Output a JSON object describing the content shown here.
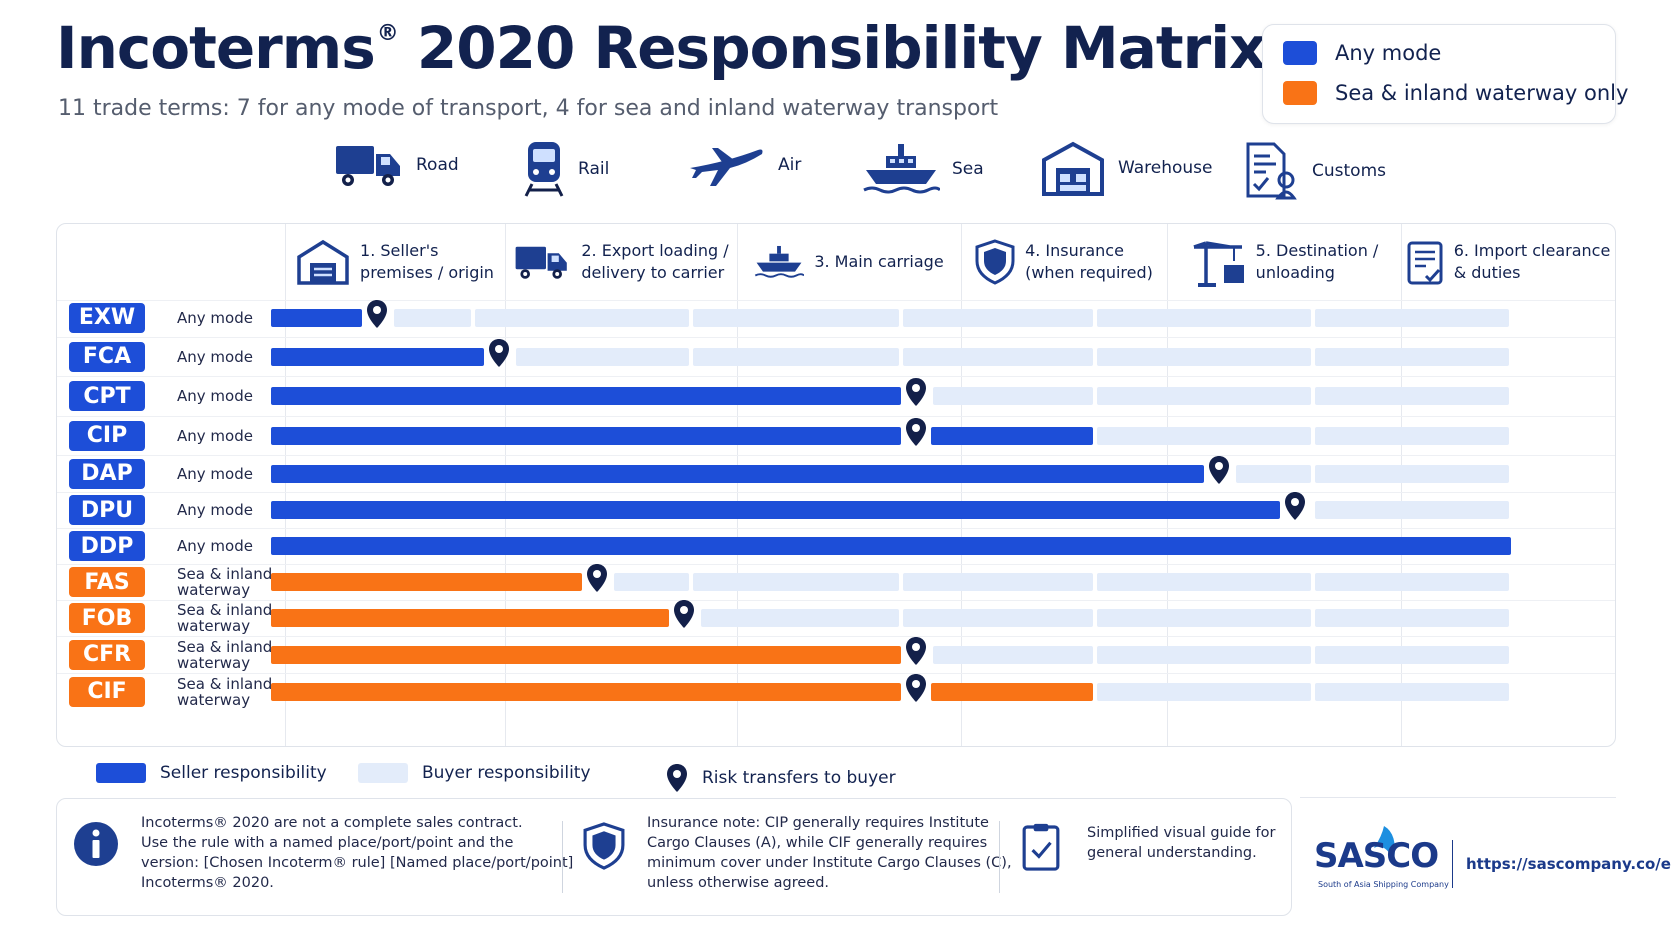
{
  "header": {
    "title": "Incoterms",
    "title_reg": "®",
    "title_rest": " 2020 Responsibility Matrix",
    "subtitle": "11 trade terms: 7 for any mode of transport, 4 for sea and inland waterway transport"
  },
  "mode_legend": [
    {
      "label": "Any mode",
      "color": "#1d4ed8"
    },
    {
      "label": "Sea & inland waterway only",
      "color": "#f97316"
    }
  ],
  "transport_modes": [
    {
      "label": "Road",
      "icon": "truck-icon"
    },
    {
      "label": "Rail",
      "icon": "train-icon"
    },
    {
      "label": "Air",
      "icon": "airplane-icon"
    },
    {
      "label": "Sea",
      "icon": "ship-icon"
    },
    {
      "label": "Warehouse",
      "icon": "warehouse-icon"
    },
    {
      "label": "Customs",
      "icon": "customs-document-icon"
    }
  ],
  "columns": [
    {
      "label": "1. Seller's\npremises / origin",
      "icon": "factory-icon"
    },
    {
      "label": "2. Export loading /\ndelivery to carrier",
      "icon": "truck-icon"
    },
    {
      "label": "3. Main carriage",
      "icon": "ship-icon"
    },
    {
      "label": "4. Insurance\n(when required)",
      "icon": "shield-icon"
    },
    {
      "label": "5. Destination /\nunloading",
      "icon": "crane-icon"
    },
    {
      "label": "6. Import clearance\n& duties",
      "icon": "clipboard-check-icon"
    }
  ],
  "colors": {
    "any": "#1d4ed8",
    "sea": "#f97316",
    "buyer": "#e3ecfa",
    "pin": "#13204a"
  },
  "terms": [
    {
      "code": "EXW",
      "mode": "Any mode",
      "group": "any",
      "seller_until": 0.45,
      "insurance_seller": false
    },
    {
      "code": "FCA",
      "mode": "Any mode",
      "group": "any",
      "seller_until": 1.05,
      "insurance_seller": false
    },
    {
      "code": "CPT",
      "mode": "Any mode",
      "group": "any",
      "seller_until": 3.0,
      "insurance_seller": false
    },
    {
      "code": "CIP",
      "mode": "Any mode",
      "group": "any",
      "seller_until": 3.0,
      "insurance_seller": true
    },
    {
      "code": "DAP",
      "mode": "Any mode",
      "group": "any",
      "seller_until": 4.5,
      "insurance_seller": false
    },
    {
      "code": "DPU",
      "mode": "Any mode",
      "group": "any",
      "seller_until": 4.85,
      "insurance_seller": false
    },
    {
      "code": "DDP",
      "mode": "Any mode",
      "group": "any",
      "seller_until": 6.0,
      "insurance_seller": false
    },
    {
      "code": "FAS",
      "mode": "Sea & inland\nwaterway",
      "group": "sea",
      "seller_until": 1.5,
      "insurance_seller": false
    },
    {
      "code": "FOB",
      "mode": "Sea & inland\nwaterway",
      "group": "sea",
      "seller_until": 1.9,
      "insurance_seller": false
    },
    {
      "code": "CFR",
      "mode": "Sea & inland\nwaterway",
      "group": "sea",
      "seller_until": 3.0,
      "insurance_seller": false
    },
    {
      "code": "CIF",
      "mode": "Sea & inland\nwaterway",
      "group": "sea",
      "seller_until": 3.0,
      "insurance_seller": true
    }
  ],
  "key": {
    "seller": "Seller responsibility",
    "buyer": "Buyer responsibility",
    "risk": "Risk transfers to buyer"
  },
  "footer": {
    "note1": "Incoterms® 2020 are not a complete sales contract.\nUse the rule with a named place/port/point and the\nversion: [Chosen Incoterm® rule] [Named place/port/point]\nIncoterms® 2020.",
    "note2": "Insurance note: CIP generally requires Institute\nCargo Clauses (A), while CIF generally requires\nminimum cover under Institute Cargo Clauses (C),\nunless otherwise agreed.",
    "note3": "Simplified visual guide for\ngeneral understanding."
  },
  "brand": {
    "name": "SASCO",
    "tagline": "South of Asia Shipping Company",
    "url": "https://sascompany.co/en/"
  }
}
